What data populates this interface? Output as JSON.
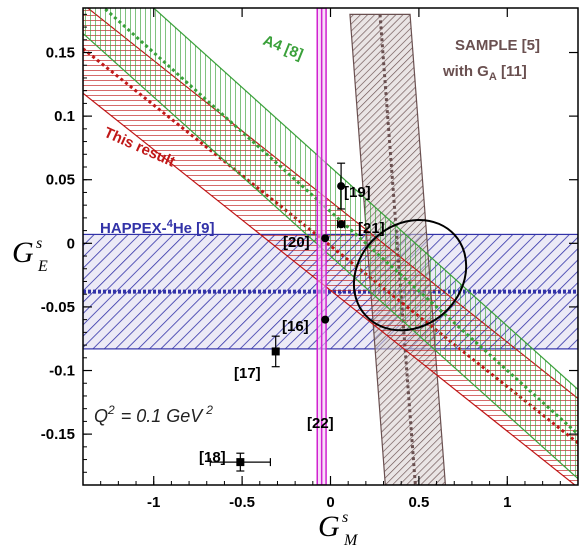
{
  "chart_data": {
    "type": "scatter",
    "xlabel": {
      "main": "G",
      "sup": "s",
      "sub": "M"
    },
    "ylabel": {
      "main": "G",
      "sup": "s",
      "sub": "E"
    },
    "xlim": [
      -1.4,
      1.4
    ],
    "ylim": [
      -0.19,
      0.185
    ],
    "x_ticks": [
      -1,
      -0.5,
      0,
      0.5,
      1
    ],
    "x_tick_labels": [
      "-1",
      "-0.5",
      "0",
      "0.5",
      "1"
    ],
    "y_ticks": [
      0.15,
      0.1,
      0.05,
      0,
      -0.05,
      -0.1,
      -0.15
    ],
    "y_tick_labels": [
      "0.15",
      "0.1",
      "0.05",
      "0",
      "-0.05",
      "-0.1",
      "-0.15"
    ],
    "annotation": {
      "q_label": "Q",
      "q_sup": "2",
      "q_value": "= 0.1 GeV",
      "q_unit_sup": "2"
    },
    "bands": [
      {
        "id": "a4",
        "label": "A4  [8]",
        "color": "#3aa03a",
        "center_line": [
          [
            -1.4,
            0.2
          ],
          [
            1.4,
            -0.15
          ]
        ],
        "half_width_y": 0.035
      },
      {
        "id": "this",
        "label": "This result",
        "color": "#c01818",
        "center_line": [
          [
            -1.4,
            0.153
          ],
          [
            1.4,
            -0.157
          ]
        ],
        "half_width_y": 0.035
      },
      {
        "id": "sample",
        "label_parts": [
          "SAMPLE  [5]",
          "with G",
          "A",
          " [11]"
        ],
        "color": "#6a5050",
        "center_line": [
          [
            0.28,
            0.18
          ],
          [
            0.48,
            -0.19
          ]
        ],
        "half_width_x": 0.17
      },
      {
        "id": "happex",
        "label_parts": [
          "HAPPEX-",
          "4",
          "He [9]"
        ],
        "color": "#3232a8",
        "center_y": -0.038,
        "half_width_y": 0.045
      },
      {
        "id": "g22",
        "label": "[22]",
        "color": "#d020d0",
        "center_x": -0.05,
        "half_width_x": 0.025
      }
    ],
    "points": [
      {
        "label": "[19]",
        "x": 0.06,
        "y": 0.045,
        "xerr": 0.0,
        "yerr": 0.018
      },
      {
        "label": "[21]",
        "x": 0.06,
        "y": 0.015,
        "xerr": 0.02,
        "yerr": 0.0
      },
      {
        "label": "[20]",
        "x": -0.03,
        "y": 0.004,
        "xerr": 0.0,
        "yerr": 0.0
      },
      {
        "label": "[16]",
        "x": -0.03,
        "y": -0.06,
        "xerr": 0.0,
        "yerr": 0.0
      },
      {
        "label": "[17]",
        "x": -0.31,
        "y": -0.085,
        "xerr": 0.0,
        "yerr": 0.012
      },
      {
        "label": "[18]",
        "x": -0.51,
        "y": -0.172,
        "xerr": 0.17,
        "yerr": 0.007
      }
    ],
    "ellipse": {
      "cx": 0.45,
      "cy": -0.025,
      "rx": 0.72,
      "ry": 0.022,
      "angle_deg": -42
    }
  }
}
